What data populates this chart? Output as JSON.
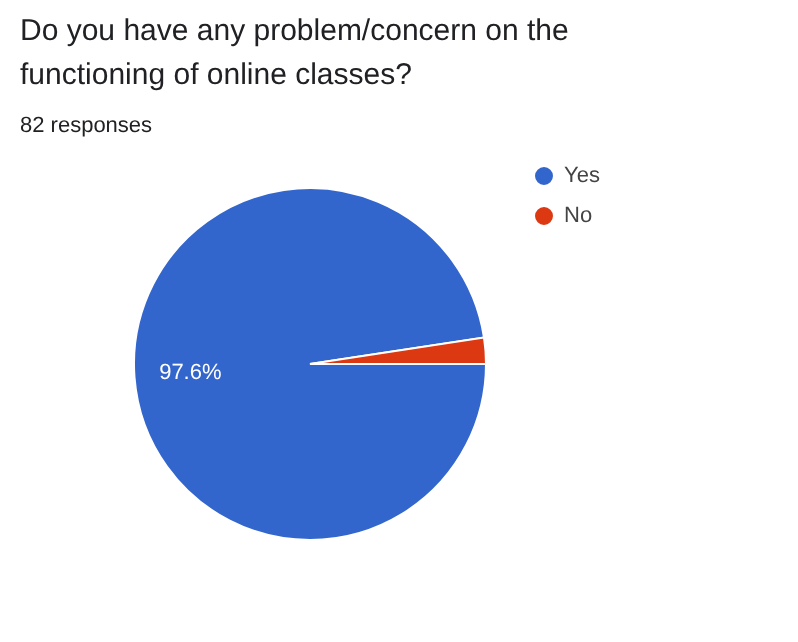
{
  "chart_data": {
    "type": "pie",
    "title": "Do you have any problem/concern on the functioning of online classes?",
    "subtitle": "82 responses",
    "categories": [
      "Yes",
      "No"
    ],
    "values": [
      97.6,
      2.4
    ],
    "colors": [
      "#3366cc",
      "#dc3912"
    ],
    "value_labels": [
      "97.6%",
      null
    ],
    "legend": "top right"
  }
}
